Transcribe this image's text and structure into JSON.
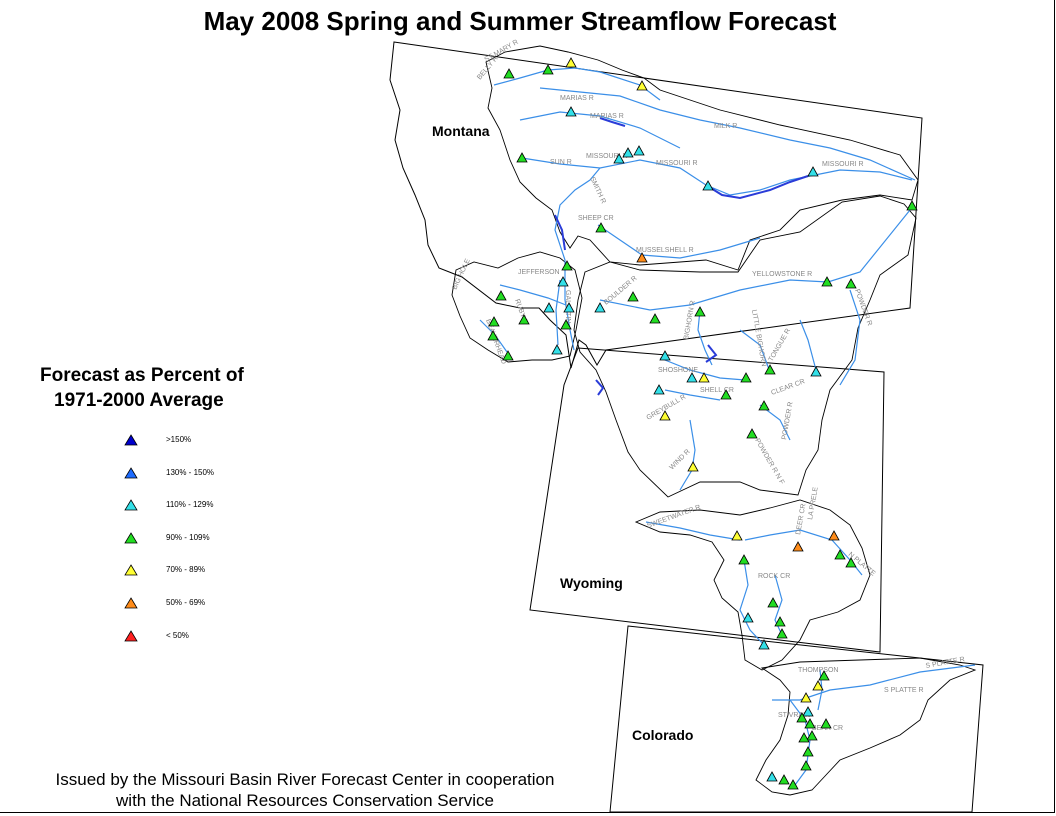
{
  "title": "May 2008 Spring and Summer Streamflow Forecast",
  "states": [
    {
      "name": "Montana"
    },
    {
      "name": "Wyoming"
    },
    {
      "name": "Colorado"
    }
  ],
  "legend": {
    "title_line1": "Forecast as Percent of",
    "title_line2": "1971-2000 Average",
    "items": [
      {
        "label": ">150%",
        "color": "#0000cc"
      },
      {
        "label": "130% - 150%",
        "color": "#1e6cff"
      },
      {
        "label": "110% - 129%",
        "color": "#33e0e8"
      },
      {
        "label": "90% - 109%",
        "color": "#22dd22"
      },
      {
        "label": "70% - 89%",
        "color": "#ffff33"
      },
      {
        "label": "50% - 69%",
        "color": "#ff8c1a"
      },
      {
        "label": "< 50%",
        "color": "#ff2020"
      }
    ]
  },
  "rivers": [
    "MILK R",
    "MARIAS R",
    "MARIAS R",
    "MISSOURI R",
    "MISSOURI R",
    "MISSOURI R",
    "SUN R",
    "SMITH R",
    "SHEEP CR",
    "MUSSELSHELL R",
    "JEFFERSON",
    "BIG HOLE",
    "RUBY R",
    "BEAVERHEAD",
    "GALLATIN",
    "BOULDER R",
    "YELLOWSTONE R",
    "POWDER R",
    "BIGHORN R",
    "LITTLE BIGHORN",
    "TONGUE R",
    "SHOSHONE",
    "SHELL CR",
    "GREYBULL R",
    "CLEAR CR",
    "POWDER R",
    "POWDER R N F",
    "WIND R",
    "SWEETWATER R",
    "DEER CR",
    "LA PRELE",
    "N PLATTE",
    "ROCK CR",
    "S PLATTE R",
    "THOMPSON",
    "ST VRAIN",
    "BEAR CR",
    "S PLATTE R",
    "BELLY R",
    "ST MARY R"
  ],
  "credit": {
    "line1": "Issued by the Missouri Basin River Forecast Center in cooperation",
    "line2": "with the National Resources Conservation Service"
  }
}
